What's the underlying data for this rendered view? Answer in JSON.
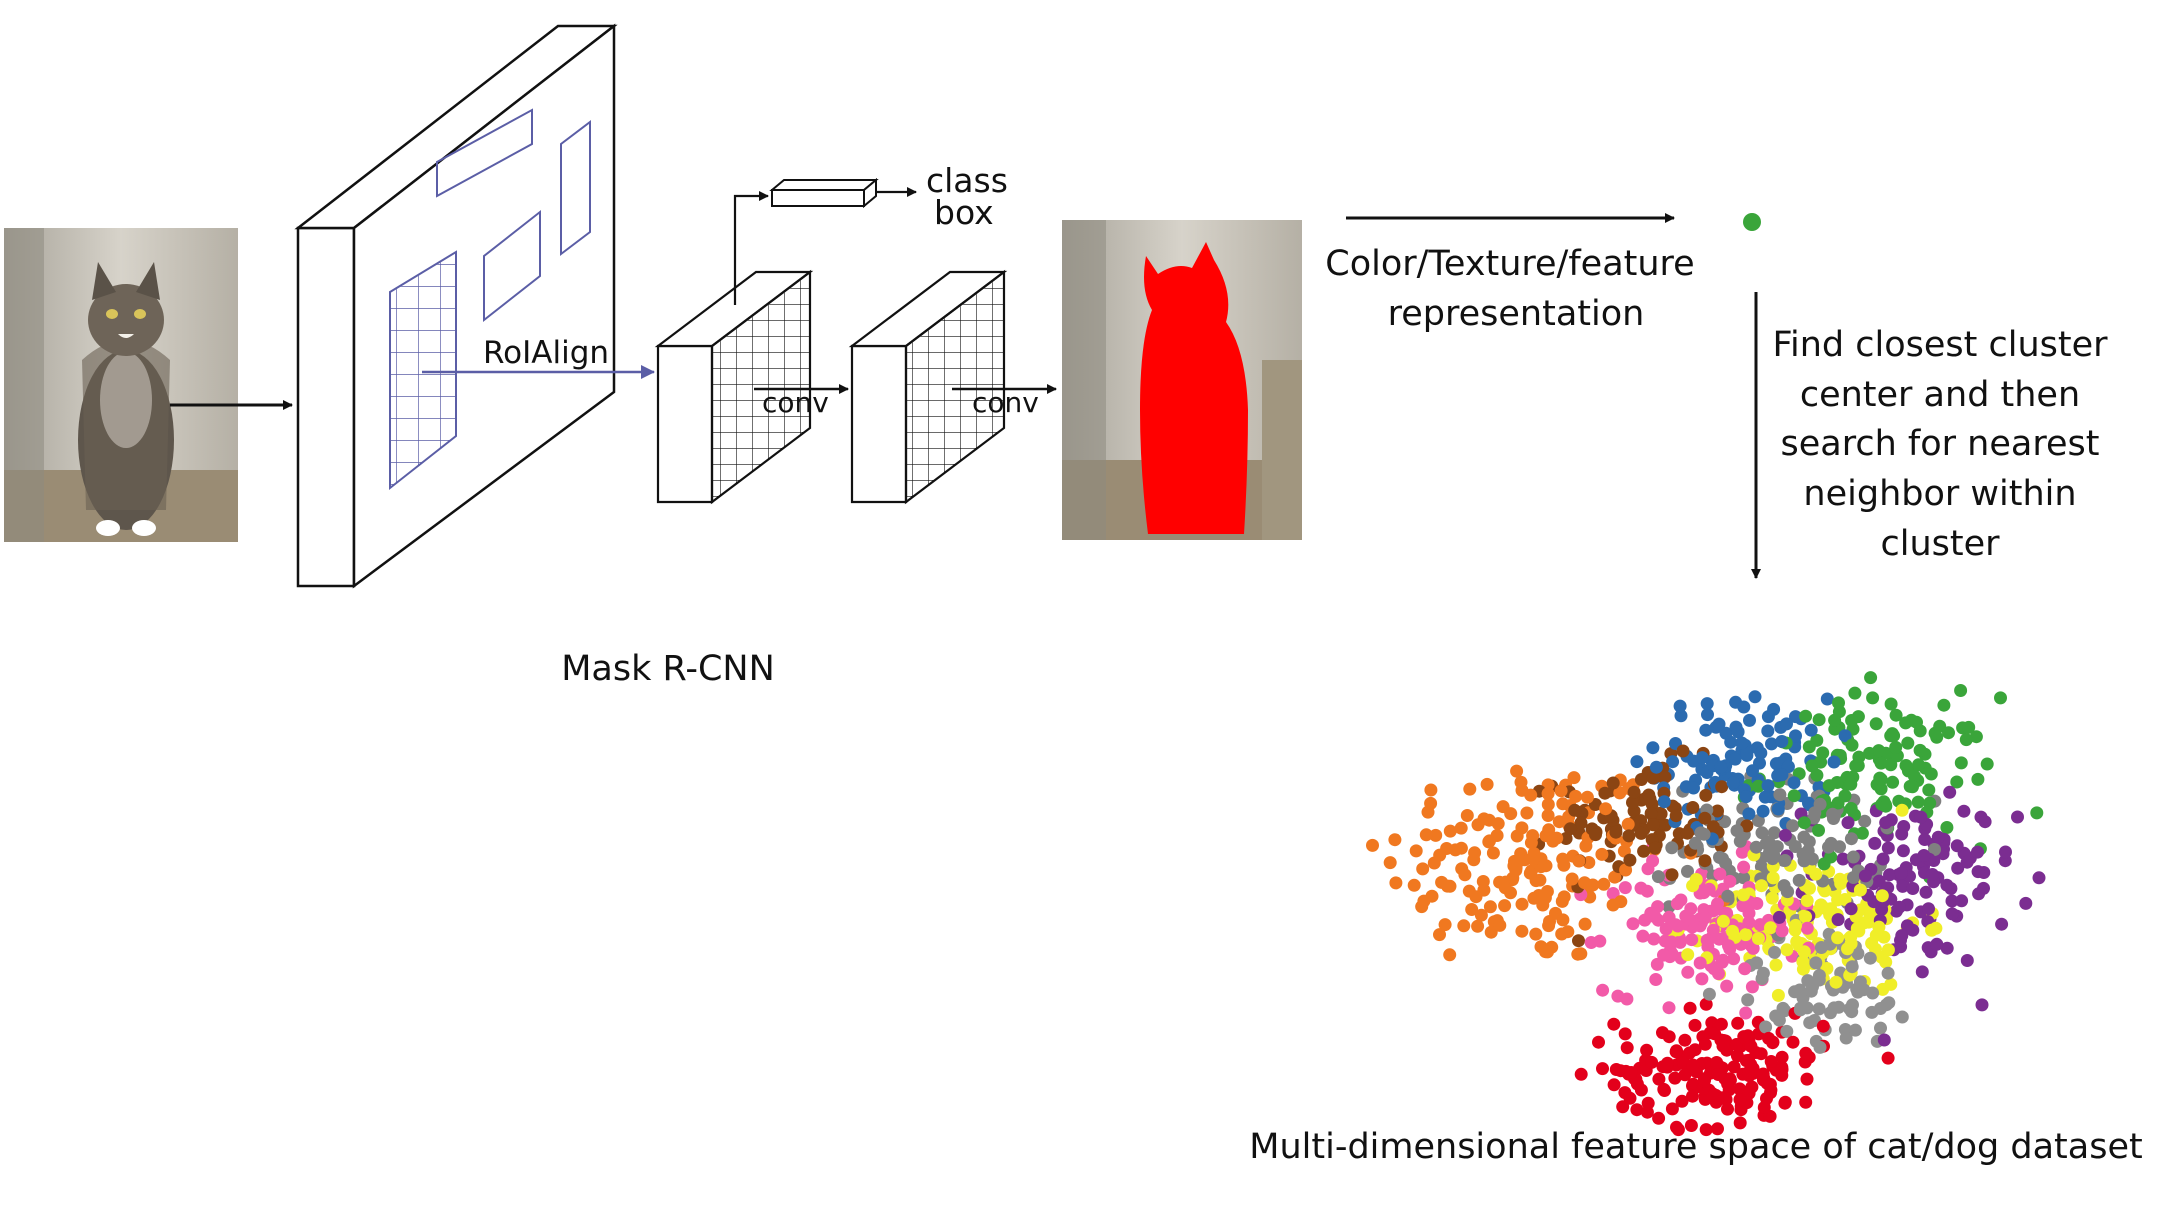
{
  "labels": {
    "roialign": "RoIAlign",
    "class": "class",
    "box": "box",
    "conv1": "conv",
    "conv2": "conv",
    "mask_rcnn": "Mask R-CNN",
    "repr_line1": "Color/Texture/feature",
    "repr_line2": "representation",
    "search_lines": [
      "Find closest cluster",
      "center and then",
      "search for nearest",
      "neighbor within",
      "cluster"
    ],
    "caption": "Multi-dimensional feature space of cat/dog dataset"
  },
  "colors": {
    "line": "#111111",
    "roi": "#5b5ea6",
    "mask": "#ff0000",
    "query_point": "#3aa53a"
  },
  "clusters": [
    {
      "color": "#f07820",
      "center": [
        -2.2,
        0.35
      ],
      "spread": [
        0.75,
        0.65
      ],
      "count": 170
    },
    {
      "color": "#8b4513",
      "center": [
        -0.95,
        0.85
      ],
      "spread": [
        0.45,
        0.35
      ],
      "count": 100
    },
    {
      "color": "#2b6bb0",
      "center": [
        0.1,
        1.55
      ],
      "spread": [
        0.45,
        0.4
      ],
      "count": 110
    },
    {
      "color": "#3aa53a",
      "center": [
        1.5,
        1.45
      ],
      "spread": [
        0.6,
        0.45
      ],
      "count": 130
    },
    {
      "color": "#808080",
      "center": [
        0.45,
        0.55
      ],
      "spread": [
        0.55,
        0.4
      ],
      "count": 110
    },
    {
      "color": "#7b2d91",
      "center": [
        1.85,
        0.1
      ],
      "spread": [
        0.55,
        0.5
      ],
      "count": 120
    },
    {
      "color": "#f25aa8",
      "center": [
        -0.35,
        -0.45
      ],
      "spread": [
        0.5,
        0.4
      ],
      "count": 130
    },
    {
      "color": "#f0ee28",
      "center": [
        0.85,
        -0.4
      ],
      "spread": [
        0.55,
        0.4
      ],
      "count": 150
    },
    {
      "color": "#909090",
      "center": [
        0.95,
        -1.2
      ],
      "spread": [
        0.5,
        0.4
      ],
      "count": 80
    },
    {
      "color": "#e3001b",
      "center": [
        -0.15,
        -2.2
      ],
      "spread": [
        0.55,
        0.35
      ],
      "count": 180
    }
  ]
}
